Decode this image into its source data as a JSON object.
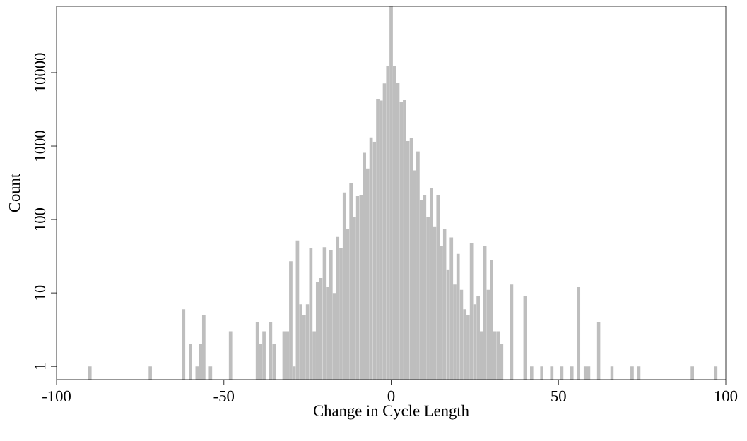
{
  "chart_data": {
    "type": "histogram",
    "xlabel": "Change in Cycle Length",
    "ylabel": "Count",
    "color": "#bebebe",
    "log": "y",
    "xlim": [
      -100,
      100
    ],
    "ylim": [
      0.66,
      80000
    ],
    "xticks": [
      -100,
      -50,
      0,
      50,
      100
    ],
    "yticks": [
      1,
      10,
      100,
      1000,
      10000
    ],
    "bins": [
      -90.5,
      -89.5,
      -72.5,
      -71.5,
      -62.5,
      -61.5,
      -60.5,
      -59.5,
      -58.5,
      -57.5,
      -56.5,
      -55.5,
      -54.5,
      -53.5,
      -48.5,
      -47.5,
      -40.5,
      -39.5,
      -38.5,
      -37.5,
      -36.5,
      -35.5,
      -34.5,
      -32.5,
      -31.5,
      -30.5,
      -29.5,
      -28.5,
      -27.5,
      -26.5,
      -25.5,
      -24.5,
      -23.5,
      -22.5,
      -21.5,
      -20.5,
      -19.5,
      -18.5,
      -17.5,
      -16.5,
      -15.5,
      -14.5,
      -13.5,
      -12.5,
      -11.5,
      -10.5,
      -9.5,
      -8.5,
      -7.5,
      -6.5,
      -5.5,
      -4.5,
      -3.5,
      -2.5,
      -1.5,
      -0.5,
      0.5,
      1.5,
      2.5,
      3.5,
      4.5,
      5.5,
      6.5,
      7.5,
      8.5,
      9.5,
      10.5,
      11.5,
      12.5,
      13.5,
      14.5,
      15.5,
      16.5,
      17.5,
      18.5,
      19.5,
      20.5,
      21.5,
      22.5,
      23.5,
      24.5,
      25.5,
      26.5,
      27.5,
      28.5,
      29.5,
      30.5,
      31.5,
      32.5,
      33.5,
      35.5,
      36.5,
      39.5,
      40.5,
      41.5,
      42.5,
      44.5,
      45.5,
      47.5,
      48.5,
      50.5,
      51.5,
      53.5,
      54.5,
      55.5,
      56.5,
      57.5,
      58.5,
      59.5,
      61.5,
      62.5,
      65.5,
      66.5,
      71.5,
      72.5,
      73.5,
      74.5,
      89.5,
      90.5,
      96.5,
      97.5
    ],
    "values": [
      1,
      null,
      1,
      null,
      6,
      null,
      2,
      null,
      1,
      2,
      5,
      null,
      1,
      null,
      3,
      null,
      4,
      2,
      3,
      null,
      4,
      2,
      null,
      3,
      3,
      27,
      1,
      52,
      7,
      5,
      7,
      41,
      3,
      14,
      16,
      42,
      12,
      38,
      10,
      58,
      41,
      233,
      75,
      314,
      107,
      208,
      217,
      809,
      497,
      1310,
      1149,
      4340,
      4180,
      7130,
      12250,
      80000,
      12400,
      7240,
      4030,
      4220,
      1168,
      1279,
      467,
      847,
      184,
      213,
      107,
      270,
      79,
      216,
      44,
      75,
      21,
      57,
      13,
      34,
      11,
      6,
      5,
      48,
      7,
      9,
      3,
      44,
      11,
      28,
      3,
      3,
      2,
      null,
      13,
      null,
      9,
      null,
      1,
      null,
      1,
      null,
      1,
      null,
      1,
      null,
      1,
      null,
      12,
      null,
      1,
      1,
      null,
      4,
      null,
      1,
      null,
      1,
      null,
      1,
      null,
      1,
      null,
      1
    ]
  }
}
